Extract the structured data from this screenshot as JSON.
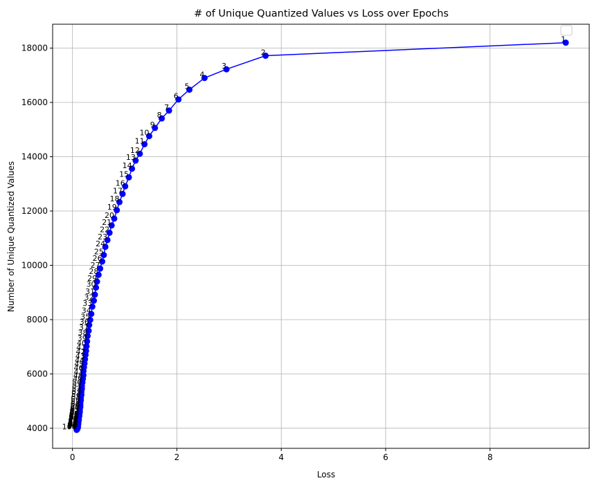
{
  "chart_data": {
    "type": "line",
    "title": "# of Unique Quantized Values vs Loss over Epochs",
    "xlabel": "Loss",
    "ylabel": "Number of Unique Quantized Values",
    "xlim": [
      -0.38,
      9.9
    ],
    "ylim": [
      3260,
      18880
    ],
    "x_ticks": [
      0,
      2,
      4,
      6,
      8
    ],
    "y_ticks": [
      4000,
      6000,
      8000,
      10000,
      12000,
      14000,
      16000,
      18000
    ],
    "grid": true,
    "legend": "top-right (empty)",
    "series": [
      {
        "color": "#0000ff",
        "marker": "circle",
        "labels": [
          "1",
          "2",
          "3",
          "4",
          "5",
          "6",
          "7",
          "8",
          "9",
          "10",
          "11",
          "12",
          "13",
          "14",
          "15",
          "16",
          "17",
          "18",
          "19",
          "20",
          "21",
          "22",
          "23",
          "24",
          "25",
          "26",
          "27",
          "28",
          "29",
          "30",
          "31",
          "32",
          "33",
          "34",
          "35",
          "36",
          "37",
          "38",
          "39",
          "40",
          "41",
          "42",
          "43",
          "44",
          "45",
          "46",
          "47",
          "48",
          "49",
          "50",
          "51",
          "52",
          "53",
          "54",
          "55",
          "56",
          "57",
          "58",
          "59",
          "60",
          "61",
          "62",
          "63",
          "64",
          "65",
          "66",
          "67",
          "68",
          "69",
          "70",
          "71",
          "72",
          "73",
          "74",
          "75",
          "76",
          "77",
          "78",
          "79",
          "80",
          "81",
          "82",
          "83",
          "84",
          "85",
          "86",
          "87",
          "88",
          "89",
          "90",
          "91",
          "92",
          "93",
          "94",
          "95",
          "96",
          "97",
          "98",
          "99",
          "100"
        ],
        "x": [
          9.45,
          3.7,
          2.95,
          2.53,
          2.24,
          2.03,
          1.85,
          1.71,
          1.58,
          1.47,
          1.38,
          1.29,
          1.21,
          1.14,
          1.08,
          1.01,
          0.96,
          0.9,
          0.85,
          0.8,
          0.75,
          0.71,
          0.67,
          0.63,
          0.6,
          0.57,
          0.53,
          0.5,
          0.47,
          0.45,
          0.43,
          0.41,
          0.38,
          0.36,
          0.34,
          0.32,
          0.31,
          0.29,
          0.28,
          0.27,
          0.26,
          0.25,
          0.24,
          0.23,
          0.22,
          0.21,
          0.21,
          0.2,
          0.19,
          0.18,
          0.18,
          0.17,
          0.17,
          0.16,
          0.16,
          0.15,
          0.15,
          0.15,
          0.14,
          0.14,
          0.14,
          0.13,
          0.13,
          0.13,
          0.12,
          0.12,
          0.12,
          0.12,
          0.12,
          0.11,
          0.11,
          0.11,
          0.11,
          0.11,
          0.11,
          0.1,
          0.1,
          0.1,
          0.1,
          0.1,
          0.1,
          0.1,
          0.1,
          0.1,
          0.1,
          0.1,
          0.1,
          0.1,
          0.1,
          0.1,
          0.1,
          0.1,
          0.1,
          0.09,
          0.09,
          0.09,
          0.09,
          0.09,
          0.09,
          0.08
        ],
        "y": [
          18200,
          17720,
          17220,
          16900,
          16470,
          16110,
          15700,
          15410,
          15060,
          14760,
          14460,
          14110,
          13860,
          13560,
          13240,
          12910,
          12630,
          12330,
          12030,
          11720,
          11470,
          11200,
          10930,
          10680,
          10380,
          10140,
          9880,
          9650,
          9400,
          9180,
          8920,
          8700,
          8480,
          8210,
          7990,
          7800,
          7590,
          7400,
          7200,
          7020,
          6850,
          6700,
          6540,
          6380,
          6240,
          6100,
          5950,
          5820,
          5690,
          5560,
          5450,
          5340,
          5230,
          5130,
          5030,
          4940,
          4860,
          4780,
          4710,
          4650,
          4590,
          4540,
          4490,
          4450,
          4410,
          4370,
          4340,
          4310,
          4280,
          4250,
          4230,
          4210,
          4190,
          4170,
          4150,
          4130,
          4120,
          4110,
          4100,
          4090,
          4080,
          4070,
          4060,
          4060,
          4050,
          4050,
          4040,
          4040,
          4030,
          4030,
          4020,
          4020,
          4010,
          4010,
          4000,
          4000,
          3990,
          3980,
          3960,
          3940
        ]
      }
    ]
  }
}
